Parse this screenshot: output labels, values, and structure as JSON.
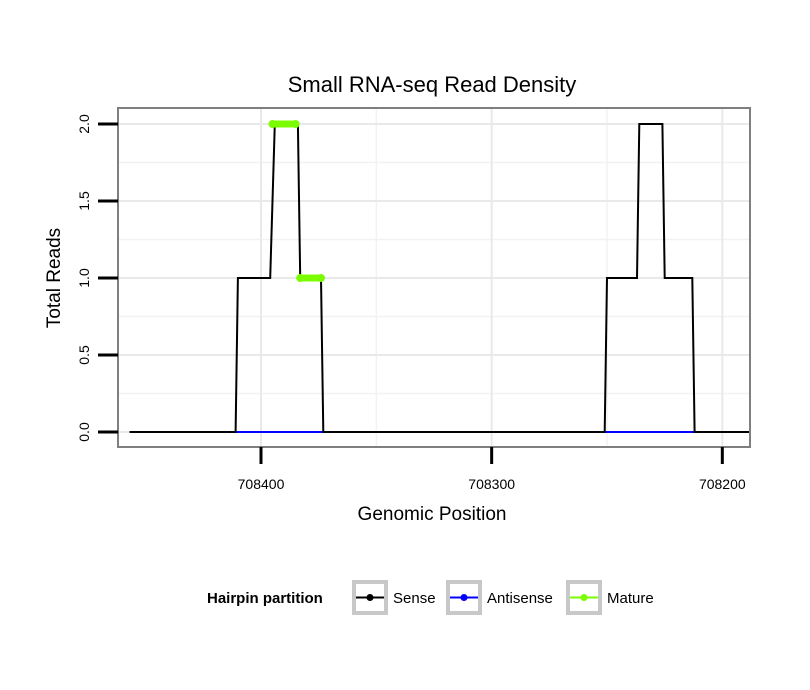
{
  "chart_data": {
    "type": "line",
    "title": "Small RNA-seq Read Density",
    "xlabel": "Genomic Position",
    "ylabel": "Total Reads",
    "x_reversed": true,
    "xlim": [
      708462,
      708188
    ],
    "ylim": [
      0,
      2.08
    ],
    "x_ticks": [
      708400,
      708300,
      708200
    ],
    "x_tick_labels": [
      "708400",
      "708300",
      "708200"
    ],
    "y_ticks": [
      0,
      0.5,
      1,
      1.5,
      2
    ],
    "y_tick_labels": [
      "0.0",
      "0.5",
      "1.0",
      "1.5",
      "2.0"
    ],
    "grid": true,
    "legend": {
      "title": "Hairpin partition",
      "position": "bottom",
      "entries": [
        {
          "label": "Sense",
          "color": "#000000"
        },
        {
          "label": "Antisense",
          "color": "#0000ff"
        },
        {
          "label": "Mature",
          "color": "#7cfc00"
        }
      ]
    },
    "series": [
      {
        "name": "Sense",
        "color": "#000000",
        "x": [
          708457,
          708411,
          708410,
          708396,
          708394,
          708384,
          708383,
          708374,
          708373,
          708333,
          708251,
          708250,
          708237,
          708236,
          708226,
          708225,
          708213,
          708212,
          708188
        ],
        "y": [
          0,
          0,
          1,
          1,
          2,
          2,
          1,
          1,
          0,
          0,
          0,
          1,
          1,
          2,
          2,
          1,
          1,
          0,
          0
        ]
      },
      {
        "name": "Antisense",
        "color": "#0000ff",
        "segments": [
          [
            708411,
            708373
          ],
          [
            708251,
            708212
          ]
        ],
        "y": 0
      },
      {
        "name": "Mature",
        "color": "#7cfc00",
        "segments": [
          {
            "x": [
              708395,
              708385
            ],
            "y": 2
          },
          {
            "x": [
              708383,
              708374
            ],
            "y": 1
          }
        ]
      }
    ]
  }
}
